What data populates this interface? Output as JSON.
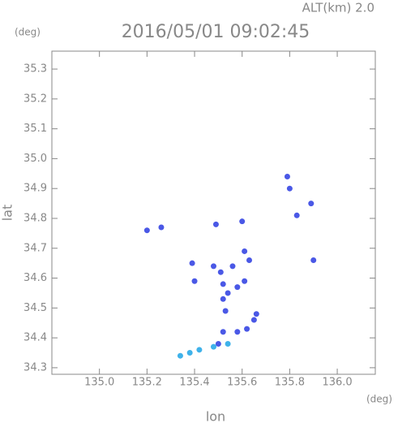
{
  "chart_data": {
    "type": "scatter",
    "annotation": "ALT(km)  2.0",
    "title": "2016/05/01 09:02:45",
    "y_unit": "(deg)",
    "x_unit": "(deg)",
    "xlabel": "lon",
    "ylabel": "lat",
    "xlim": [
      134.8,
      136.16
    ],
    "ylim": [
      34.278,
      35.36
    ],
    "xticks": [
      {
        "value": 135,
        "label": "135.0"
      },
      135.2,
      135.4,
      135.6,
      135.8,
      {
        "value": 136,
        "label": "136.0"
      }
    ],
    "yticks": [
      34.3,
      34.4,
      34.5,
      34.6,
      34.7,
      34.8,
      34.9,
      {
        "value": 35,
        "label": "35.0"
      },
      35.1,
      35.2,
      35.3
    ],
    "series": [
      {
        "color": "#4a58e6",
        "x": [
          135.2,
          135.26,
          135.49,
          135.6,
          135.79,
          135.8,
          135.89,
          135.83,
          135.9,
          135.39,
          135.4,
          135.48,
          135.51,
          135.56,
          135.61,
          135.63,
          135.52,
          135.54,
          135.52,
          135.53,
          135.61,
          135.58,
          135.66,
          135.65,
          135.62,
          135.58,
          135.52,
          135.5
        ],
        "values": [
          34.76,
          34.77,
          34.78,
          34.79,
          34.94,
          34.9,
          34.85,
          34.81,
          34.66,
          34.65,
          34.59,
          34.64,
          34.62,
          34.64,
          34.69,
          34.66,
          34.58,
          34.55,
          34.53,
          34.49,
          34.59,
          34.57,
          34.48,
          34.46,
          34.43,
          34.42,
          34.42,
          34.38
        ]
      },
      {
        "color": "#3fb2ea",
        "x": [
          135.54,
          135.48,
          135.42,
          135.38,
          135.34
        ],
        "values": [
          34.38,
          34.37,
          34.36,
          34.35,
          34.34
        ]
      }
    ]
  }
}
